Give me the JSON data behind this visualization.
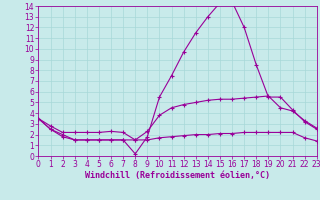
{
  "x": [
    0,
    1,
    2,
    3,
    4,
    5,
    6,
    7,
    8,
    9,
    10,
    11,
    12,
    13,
    14,
    15,
    16,
    17,
    18,
    19,
    20,
    21,
    22,
    23
  ],
  "line_top": [
    3.5,
    2.5,
    2.0,
    1.5,
    1.5,
    1.5,
    1.5,
    1.5,
    0.2,
    1.8,
    5.5,
    7.5,
    9.7,
    11.5,
    13.0,
    14.3,
    14.4,
    12.0,
    8.5,
    5.5,
    5.5,
    4.3,
    3.2,
    2.5
  ],
  "line_mid": [
    3.5,
    2.8,
    2.2,
    2.2,
    2.2,
    2.2,
    2.3,
    2.2,
    1.5,
    2.3,
    3.8,
    4.5,
    4.8,
    5.0,
    5.2,
    5.3,
    5.3,
    5.4,
    5.5,
    5.6,
    4.5,
    4.2,
    3.3,
    2.6
  ],
  "line_bot": [
    3.5,
    2.5,
    1.8,
    1.5,
    1.5,
    1.5,
    1.5,
    1.5,
    1.5,
    1.5,
    1.7,
    1.8,
    1.9,
    2.0,
    2.0,
    2.1,
    2.1,
    2.2,
    2.2,
    2.2,
    2.2,
    2.2,
    1.7,
    1.4
  ],
  "color": "#990099",
  "bg_color": "#c8eaea",
  "grid_color": "#a8d8d8",
  "xlabel": "Windchill (Refroidissement éolien,°C)",
  "xlim": [
    0,
    23
  ],
  "ylim": [
    0,
    14
  ],
  "xticks": [
    0,
    1,
    2,
    3,
    4,
    5,
    6,
    7,
    8,
    9,
    10,
    11,
    12,
    13,
    14,
    15,
    16,
    17,
    18,
    19,
    20,
    21,
    22,
    23
  ],
  "yticks": [
    0,
    1,
    2,
    3,
    4,
    5,
    6,
    7,
    8,
    9,
    10,
    11,
    12,
    13,
    14
  ],
  "xlabel_fontsize": 6.0,
  "tick_fontsize": 5.5
}
